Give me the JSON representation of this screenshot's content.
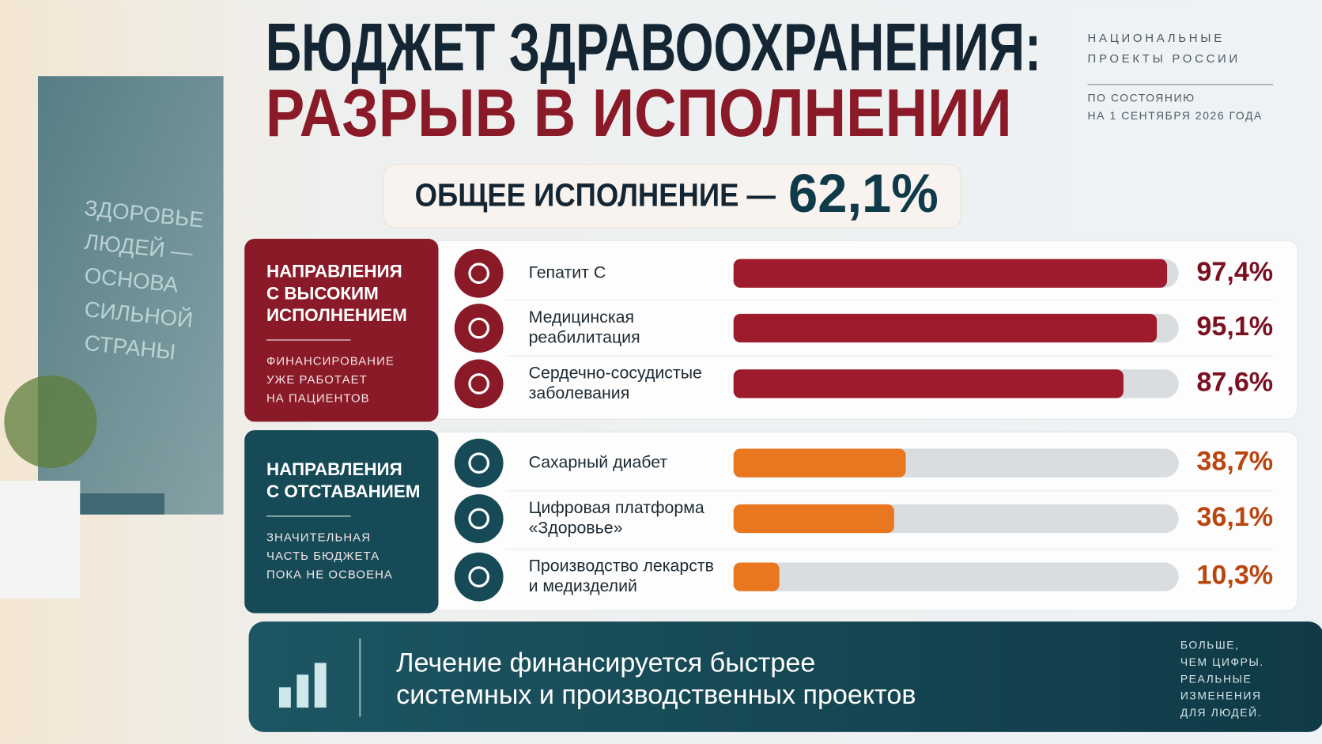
{
  "header": {
    "title_line1": "БЮДЖЕТ ЗДРАВООХРАНЕНИЯ:",
    "title_line2": "РАЗРЫВ В ИСПОЛНЕНИИ",
    "source_lines": [
      "НАЦИОНАЛЬНЫЕ",
      "ПРОЕКТЫ РОССИИ"
    ],
    "date_lines": [
      "ПО СОСТОЯНИЮ",
      "НА 1 СЕНТЯБРЯ 2026 ГОДА"
    ]
  },
  "total": {
    "label": "ОБЩЕЕ ИСПОЛНЕНИЕ —",
    "value_label": "62,1%"
  },
  "wall_text": [
    "ЗДОРОВЬЕ",
    "ЛЮДЕЙ —",
    "ОСНОВА",
    "СИЛЬНОЙ",
    "СТРАНЫ"
  ],
  "xlim": [
    0,
    100
  ],
  "groups": [
    {
      "title_lines": [
        "НАПРАВЛЕНИЯ",
        "С ВЫСОКИМ",
        "ИСПОЛНЕНИЕМ"
      ],
      "note_lines": [
        "ФИНАНСИРОВАНИЕ",
        "УЖЕ РАБОТАЕТ",
        "НА ПАЦИЕНТОВ"
      ],
      "color": "#8b1a28",
      "bar_color": "#9e1b2e",
      "label_color": "#7a1020",
      "items": [
        {
          "label_lines": [
            "Гепатит С"
          ],
          "value": 97.4,
          "value_label": "97,4%"
        },
        {
          "label_lines": [
            "Медицинская",
            "реабилитация"
          ],
          "value": 95.1,
          "value_label": "95,1%"
        },
        {
          "label_lines": [
            "Сердечно-сосудистые",
            "заболевания"
          ],
          "value": 87.6,
          "value_label": "87,6%"
        }
      ]
    },
    {
      "title_lines": [
        "НАПРАВЛЕНИЯ",
        "С ОТСТАВАНИЕМ"
      ],
      "note_lines": [
        "ЗНАЧИТЕЛЬНАЯ",
        "ЧАСТЬ БЮДЖЕТА",
        "ПОКА НЕ ОСВОЕНА"
      ],
      "color": "#164a57",
      "bar_color": "#e8771f",
      "label_color": "#b8460f",
      "items": [
        {
          "label_lines": [
            "Сахарный диабет"
          ],
          "value": 38.7,
          "value_label": "38,7%"
        },
        {
          "label_lines": [
            "Цифровая платформа",
            "«Здоровье»"
          ],
          "value": 36.1,
          "value_label": "36,1%"
        },
        {
          "label_lines": [
            "Производство лекарств",
            "и медизделий"
          ],
          "value": 10.3,
          "value_label": "10,3%"
        }
      ]
    }
  ],
  "footer": {
    "lines": [
      "Лечение финансируется быстрее",
      "системных и производственных проектов"
    ],
    "side_lines": [
      "БОЛЬШЕ,",
      "ЧЕМ ЦИФРЫ.",
      "РЕАЛЬНЫЕ",
      "ИЗМЕНЕНИЯ",
      "ДЛЯ ЛЮДЕЙ."
    ]
  }
}
